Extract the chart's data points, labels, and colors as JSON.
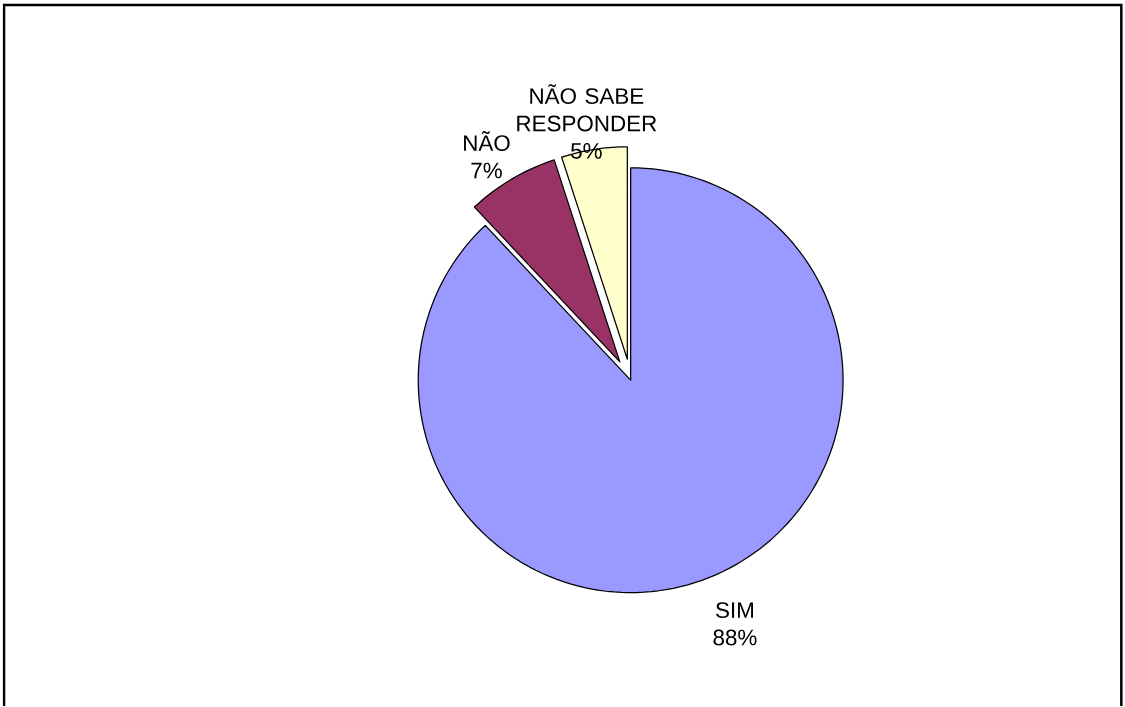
{
  "chart_data": {
    "type": "pie",
    "categories": [
      "SIM",
      "NÃO",
      "NÃO SABE RESPONDER"
    ],
    "values": [
      88,
      7,
      5
    ],
    "colors": [
      "#9999ff",
      "#993366",
      "#ffffcc"
    ],
    "value_labels": [
      "88%",
      "7%",
      "5%"
    ],
    "data_labels": true
  }
}
